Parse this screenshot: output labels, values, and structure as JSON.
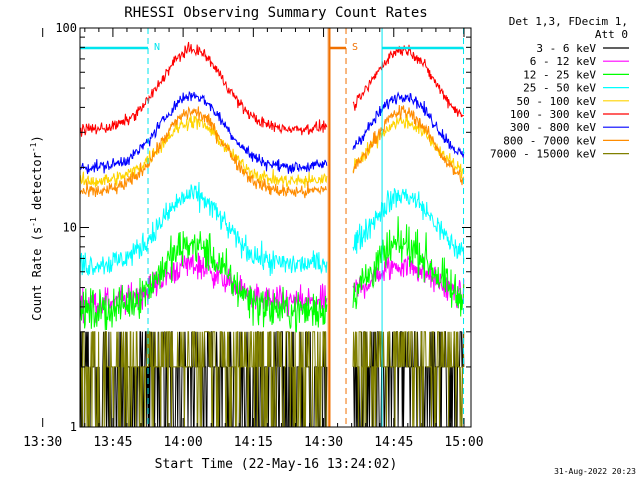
{
  "chart_data": {
    "type": "line",
    "title": "RHESSI Observing Summary Count Rates",
    "xlabel": "Start Time (22-May-16 13:24:02)",
    "ylabel_main": "Count Rate (s",
    "ylabel_exp1": "-1",
    "ylabel_mid": " detector",
    "ylabel_exp2": "-1",
    "ylabel_end": ")",
    "y_scale": "log",
    "ylim": [
      1,
      100
    ],
    "x_range_minutes": [
      13.97,
      97.5
    ],
    "x_tick_minutes": [
      6,
      21,
      36,
      51,
      66,
      81,
      96
    ],
    "x_tick_labels": [
      "13:30",
      "13:45",
      "14:00",
      "14:15",
      "14:30",
      "14:45",
      "15:00"
    ],
    "y_tick_values": [
      1,
      10,
      100
    ],
    "y_tick_labels": [
      "1",
      "10",
      "100"
    ],
    "legend_header": [
      "Det 1,3, FDecim 1,",
      "Att 0"
    ],
    "legend_position": "right",
    "timestamp": "31-Aug-2022 20:23",
    "flags": [
      {
        "label": "N",
        "color": "#00e5ee",
        "start_min": 0,
        "end_min": 28.5
      },
      {
        "label": "S",
        "color": "#f07000",
        "start_min": 67.3,
        "end_min": 70.8
      },
      {
        "label": "",
        "color": "#00e5ee",
        "start_min": 78.5,
        "end_min": 95.9
      }
    ],
    "markers": [
      {
        "minute": 28.5,
        "color": "#00e5ee",
        "style": "dashed"
      },
      {
        "minute": 67.0,
        "color": "#f07000",
        "style": "solid"
      },
      {
        "minute": 70.8,
        "color": "#f07000",
        "style": "dashed"
      },
      {
        "minute": 78.5,
        "color": "#00e5ee",
        "style": "solid"
      },
      {
        "minute": 95.9,
        "color": "#00e5ee",
        "style": "dashed"
      }
    ],
    "data_windows_min": [
      [
        0,
        66.8
      ],
      [
        72.3,
        96.0
      ]
    ],
    "peaks_min": [
      38,
      83
    ],
    "series": [
      {
        "name": "3 - 6 keV",
        "color": "#000000",
        "base": 2.0,
        "peak": 3.0,
        "noise": 0.3
      },
      {
        "name": "6 - 12 keV",
        "color": "#ff00ff",
        "base": 4.2,
        "peak": 6.5,
        "noise": 0.07
      },
      {
        "name": "12 - 25 keV",
        "color": "#00ff00",
        "base": 3.8,
        "peak": 8.2,
        "noise": 0.1
      },
      {
        "name": "25 - 50 keV",
        "color": "#00ffff",
        "base": 6.5,
        "peak": 14.5,
        "noise": 0.06
      },
      {
        "name": "50 - 100 keV",
        "color": "#ffd400",
        "base": 17.0,
        "peak": 34.0,
        "noise": 0.035
      },
      {
        "name": "100 - 300 keV",
        "color": "#ff0000",
        "base": 31.0,
        "peak": 78.0,
        "noise": 0.028
      },
      {
        "name": "300 - 800 keV",
        "color": "#0000ff",
        "base": 20.0,
        "peak": 46.0,
        "noise": 0.03
      },
      {
        "name": "800 - 7000 keV",
        "color": "#ff8c00",
        "base": 15.0,
        "peak": 38.0,
        "noise": 0.035
      },
      {
        "name": "7000 - 15000 keV",
        "color": "#808000",
        "base": 2.0,
        "peak": 3.4,
        "noise": 0.3
      }
    ]
  }
}
